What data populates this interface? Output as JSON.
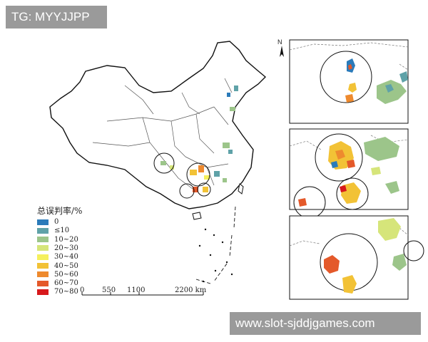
{
  "watermarks": {
    "top": "TG: MYYJJPP",
    "bottom": "www.slot-sjddjgames.com"
  },
  "map": {
    "north_label": "N",
    "legend": {
      "title": "总误判率/%",
      "items": [
        {
          "label": "0",
          "color": "#2b7bba"
        },
        {
          "label": "≤10",
          "color": "#5fa2a8"
        },
        {
          "label": "10~20",
          "color": "#9cc58a"
        },
        {
          "label": "20~30",
          "color": "#d6e57a"
        },
        {
          "label": "30~40",
          "color": "#f5f05c"
        },
        {
          "label": "40~50",
          "color": "#f2c236"
        },
        {
          "label": "50~60",
          "color": "#ee8a2e"
        },
        {
          "label": "60~70",
          "color": "#e4592a"
        },
        {
          "label": "70~80",
          "color": "#d7191c"
        }
      ]
    },
    "scale_bar": {
      "ticks": [
        "0",
        "550",
        "1100",
        "2200 km"
      ]
    }
  }
}
